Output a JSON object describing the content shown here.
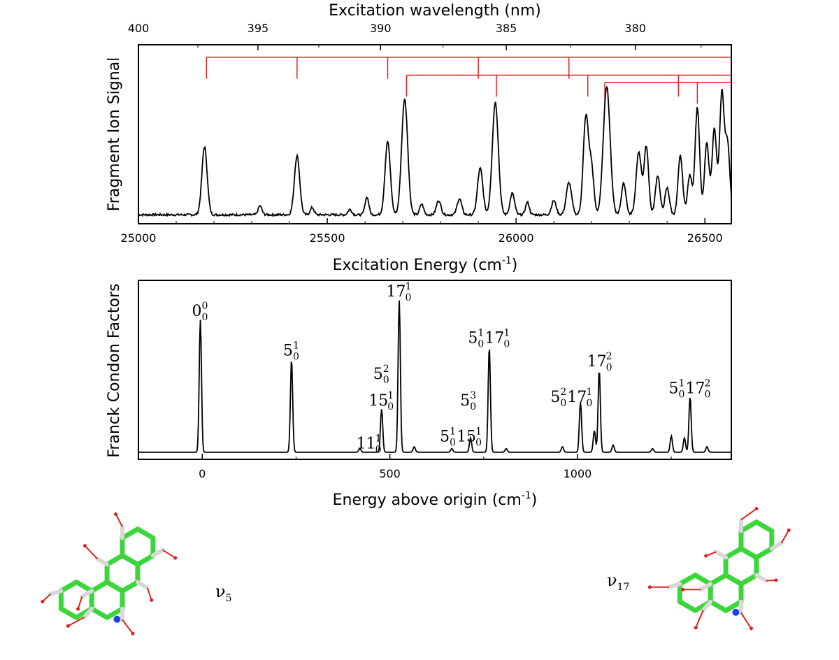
{
  "chart_data": [
    {
      "type": "line",
      "ylabel": "Fragment Ion Signal",
      "xlabel": "Excitation Energy (cm",
      "xlabel_sup": "-1",
      "xlabel_end": ")",
      "xlim": [
        25000,
        26570
      ],
      "ylim": [
        0,
        1
      ],
      "xticks": [
        25000,
        25500,
        26000,
        26500
      ],
      "top_axis": {
        "label": "Excitation wavelength (nm)",
        "ticks": [
          400,
          395,
          390,
          385,
          380
        ]
      },
      "spectrum": {
        "baseline": 0.05,
        "noise": 0.012,
        "peaks": [
          {
            "x": 25175,
            "h": 0.38,
            "w": 7
          },
          {
            "x": 25322,
            "h": 0.05,
            "w": 5
          },
          {
            "x": 25420,
            "h": 0.33,
            "w": 7
          },
          {
            "x": 25460,
            "h": 0.04,
            "w": 5
          },
          {
            "x": 25560,
            "h": 0.03,
            "w": 5
          },
          {
            "x": 25605,
            "h": 0.1,
            "w": 5
          },
          {
            "x": 25660,
            "h": 0.41,
            "w": 7
          },
          {
            "x": 25705,
            "h": 0.65,
            "w": 8
          },
          {
            "x": 25750,
            "h": 0.06,
            "w": 5
          },
          {
            "x": 25795,
            "h": 0.08,
            "w": 6
          },
          {
            "x": 25850,
            "h": 0.09,
            "w": 6
          },
          {
            "x": 25905,
            "h": 0.26,
            "w": 7
          },
          {
            "x": 25945,
            "h": 0.63,
            "w": 8
          },
          {
            "x": 25990,
            "h": 0.12,
            "w": 6
          },
          {
            "x": 26030,
            "h": 0.07,
            "w": 5
          },
          {
            "x": 26100,
            "h": 0.08,
            "w": 6
          },
          {
            "x": 26140,
            "h": 0.18,
            "w": 7
          },
          {
            "x": 26185,
            "h": 0.55,
            "w": 7
          },
          {
            "x": 26200,
            "h": 0.25,
            "w": 6
          },
          {
            "x": 26240,
            "h": 0.72,
            "w": 9
          },
          {
            "x": 26285,
            "h": 0.18,
            "w": 6
          },
          {
            "x": 26325,
            "h": 0.35,
            "w": 7
          },
          {
            "x": 26345,
            "h": 0.38,
            "w": 6
          },
          {
            "x": 26375,
            "h": 0.22,
            "w": 6
          },
          {
            "x": 26400,
            "h": 0.15,
            "w": 6
          },
          {
            "x": 26435,
            "h": 0.33,
            "w": 6
          },
          {
            "x": 26460,
            "h": 0.22,
            "w": 6
          },
          {
            "x": 26480,
            "h": 0.6,
            "w": 6
          },
          {
            "x": 26505,
            "h": 0.4,
            "w": 6
          },
          {
            "x": 26525,
            "h": 0.48,
            "w": 6
          },
          {
            "x": 26545,
            "h": 0.68,
            "w": 6
          },
          {
            "x": 26560,
            "h": 0.4,
            "w": 6
          }
        ]
      },
      "progressions": [
        {
          "y": 0.93,
          "x_start": 25180,
          "drops": [
            {
              "x": 25180,
              "to": 0.81
            },
            {
              "x": 25420,
              "to": 0.81
            },
            {
              "x": 25660,
              "to": 0.81
            },
            {
              "x": 25900,
              "to": 0.81
            },
            {
              "x": 26140,
              "to": 0.81
            }
          ]
        },
        {
          "y": 0.83,
          "x_start": 25710,
          "drops": [
            {
              "x": 25710,
              "to": 0.71
            },
            {
              "x": 25948,
              "to": 0.71
            },
            {
              "x": 26190,
              "to": 0.71
            },
            {
              "x": 26430,
              "to": 0.71
            }
          ]
        },
        {
          "y": 0.79,
          "x_start": 26235,
          "drops": [
            {
              "x": 26235,
              "to": 0.67
            },
            {
              "x": 26480,
              "to": 0.67
            }
          ]
        }
      ],
      "progression_color": "#e02020"
    },
    {
      "type": "line",
      "ylabel": "Franck Condon Factors",
      "xlabel": "Energy above origin (cm",
      "xlabel_sup": "-1",
      "xlabel_end": ")",
      "xlim": [
        -170,
        1410
      ],
      "ylim": [
        0,
        1
      ],
      "xticks": [
        0,
        500,
        1000
      ],
      "spectrum": {
        "baseline": 0.04,
        "peaks": [
          {
            "x": -5,
            "h": 0.74,
            "w": 3
          },
          {
            "x": 238,
            "h": 0.52,
            "w": 3
          },
          {
            "x": 420,
            "h": 0.02,
            "w": 3
          },
          {
            "x": 478,
            "h": 0.24,
            "w": 3
          },
          {
            "x": 525,
            "h": 0.85,
            "w": 3
          },
          {
            "x": 565,
            "h": 0.03,
            "w": 3
          },
          {
            "x": 665,
            "h": 0.02,
            "w": 3
          },
          {
            "x": 715,
            "h": 0.08,
            "w": 3
          },
          {
            "x": 765,
            "h": 0.59,
            "w": 3
          },
          {
            "x": 810,
            "h": 0.02,
            "w": 3
          },
          {
            "x": 960,
            "h": 0.03,
            "w": 3
          },
          {
            "x": 1008,
            "h": 0.28,
            "w": 3
          },
          {
            "x": 1045,
            "h": 0.12,
            "w": 3
          },
          {
            "x": 1058,
            "h": 0.46,
            "w": 3
          },
          {
            "x": 1095,
            "h": 0.04,
            "w": 3
          },
          {
            "x": 1200,
            "h": 0.02,
            "w": 3
          },
          {
            "x": 1250,
            "h": 0.09,
            "w": 3
          },
          {
            "x": 1285,
            "h": 0.08,
            "w": 3
          },
          {
            "x": 1300,
            "h": 0.31,
            "w": 3
          },
          {
            "x": 1345,
            "h": 0.03,
            "w": 3
          }
        ]
      },
      "annotations": [
        {
          "x": -5,
          "y": 0.8,
          "parts": [
            {
              "base": "0",
              "sup": "0",
              "sub": "0"
            }
          ]
        },
        {
          "x": 238,
          "y": 0.58,
          "parts": [
            {
              "base": "5",
              "sup": "1",
              "sub": "0"
            }
          ]
        },
        {
          "x": 445,
          "y": 0.06,
          "parts": [
            {
              "base": "11",
              "sup": "1",
              "sub": "0"
            }
          ]
        },
        {
          "x": 478,
          "y": 0.3,
          "parts": [
            {
              "base": "15",
              "sup": "1",
              "sub": "0"
            }
          ]
        },
        {
          "x": 478,
          "y": 0.45,
          "parts": [
            {
              "base": "5",
              "sup": "2",
              "sub": "0"
            }
          ]
        },
        {
          "x": 525,
          "y": 0.91,
          "parts": [
            {
              "base": "17",
              "sup": "1",
              "sub": "0"
            }
          ]
        },
        {
          "x": 690,
          "y": 0.1,
          "parts": [
            {
              "base": "5",
              "sup": "1",
              "sub": "0"
            },
            {
              "base": "15",
              "sup": "1",
              "sub": "0"
            }
          ]
        },
        {
          "x": 710,
          "y": 0.3,
          "parts": [
            {
              "base": "5",
              "sup": "3",
              "sub": "0"
            }
          ]
        },
        {
          "x": 765,
          "y": 0.65,
          "parts": [
            {
              "base": "5",
              "sup": "1",
              "sub": "0"
            },
            {
              "base": "17",
              "sup": "1",
              "sub": "0"
            }
          ]
        },
        {
          "x": 985,
          "y": 0.32,
          "parts": [
            {
              "base": "5",
              "sup": "2",
              "sub": "0"
            },
            {
              "base": "17",
              "sup": "1",
              "sub": "0"
            }
          ]
        },
        {
          "x": 1060,
          "y": 0.52,
          "parts": [
            {
              "base": "17",
              "sup": "2",
              "sub": "0"
            }
          ]
        },
        {
          "x": 1300,
          "y": 0.37,
          "parts": [
            {
              "base": "5",
              "sup": "1",
              "sub": "0"
            },
            {
              "base": "17",
              "sup": "2",
              "sub": "0"
            }
          ]
        }
      ]
    }
  ],
  "molecules": [
    {
      "name": "nu5",
      "label_base": "ν",
      "label_sub": "5"
    },
    {
      "name": "nu17",
      "label_base": "ν",
      "label_sub": "17"
    }
  ],
  "colors": {
    "carbon": "#3cd63c",
    "hydrogen": "#d8d8d8",
    "nitrogen": "#2040e0",
    "vector": "#e02020",
    "trace": "#000000"
  }
}
